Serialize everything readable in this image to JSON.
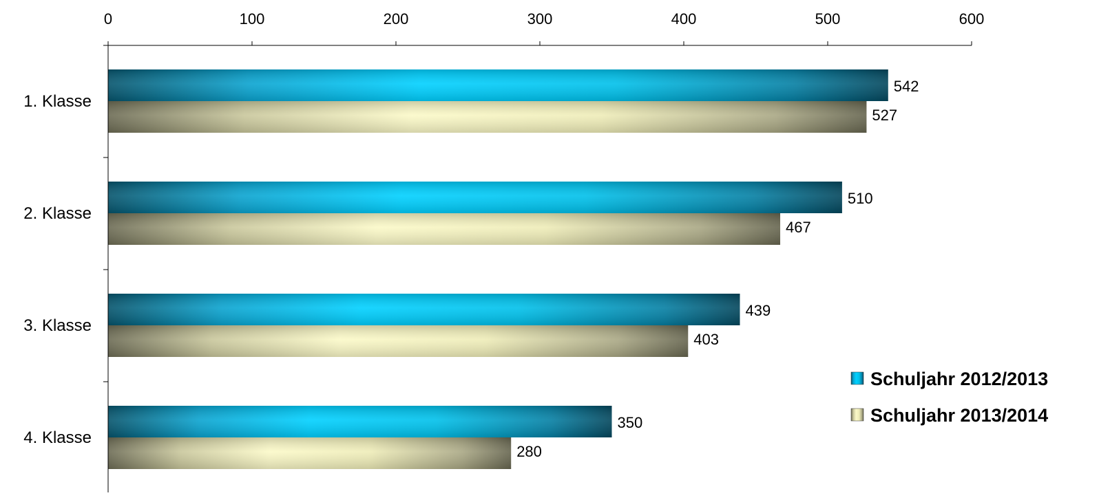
{
  "chart_data": {
    "type": "bar",
    "orientation": "horizontal",
    "categories": [
      "1. Klasse",
      "2. Klasse",
      "3. Klasse",
      "4. Klasse"
    ],
    "series": [
      {
        "name": "Schuljahr 2012/2013",
        "values": [
          542,
          510,
          439,
          350
        ],
        "color": "#00bfe8"
      },
      {
        "name": "Schuljahr 2013/2014",
        "values": [
          527,
          467,
          403,
          280
        ],
        "color": "#e8e6b0"
      }
    ],
    "xlim": [
      0,
      600
    ],
    "xticks": [
      0,
      100,
      200,
      300,
      400,
      500,
      600
    ],
    "x_axis_position": "top",
    "grid": false,
    "legend_position": "right"
  }
}
